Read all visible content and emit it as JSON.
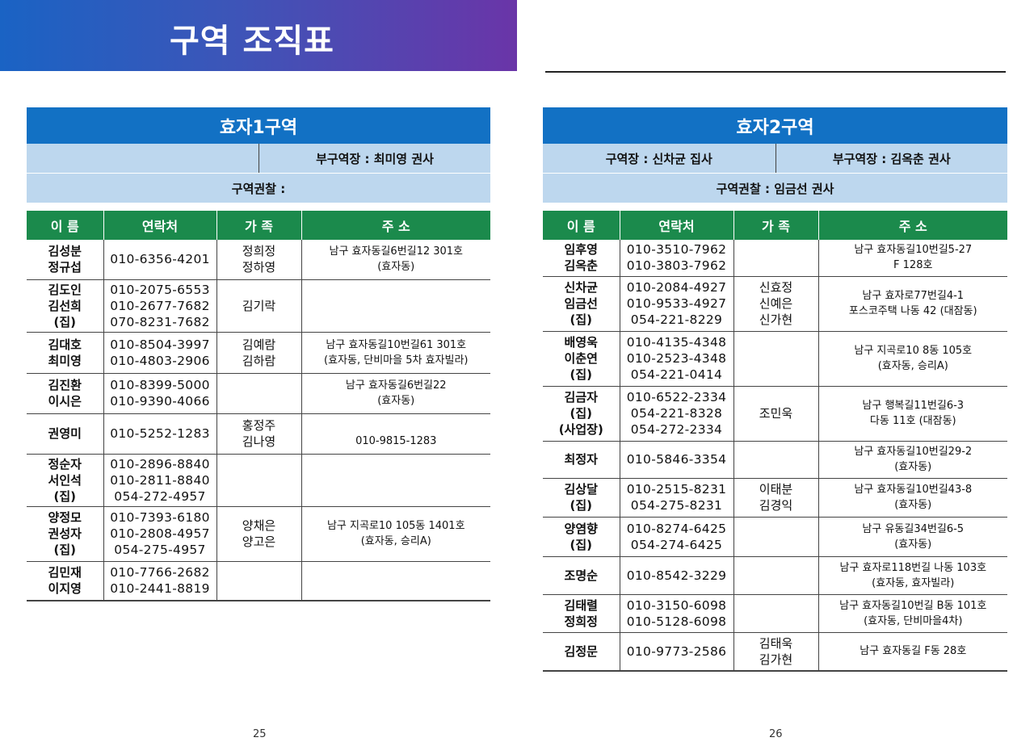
{
  "banner": {
    "title": "구역 조직표"
  },
  "columns": [
    "이 름",
    "연락처",
    "가 족",
    "주 소"
  ],
  "left": {
    "title": "효자1구역",
    "row1": [
      "",
      "부구역장 : 최미영 권사"
    ],
    "row2": "구역권찰 :",
    "rows": [
      [
        "김성분\n정규섭",
        "010-6356-4201",
        "정희정\n정하영",
        "남구 효자동길6번길12  301호\n(효자동)"
      ],
      [
        "김도인\n김선희\n(집)",
        "010-2075-6553\n010-2677-7682\n070-8231-7682",
        "김기락",
        ""
      ],
      [
        "김대호\n최미영",
        "010-8504-3997\n010-4803-2906",
        "김예람\n김하람",
        "남구 효자동길10번길61  301호\n(효자동, 단비마을 5차 효자빌라)"
      ],
      [
        "김진환\n이시은",
        "010-8399-5000\n010-9390-4066",
        "",
        "남구 효자동길6번길22\n(효자동)"
      ],
      [
        "권영미",
        "010-5252-1283",
        "홍정주\n김나영",
        "\n010-9815-1283"
      ],
      [
        "정순자\n서인석\n(집)",
        "010-2896-8840\n010-2811-8840\n054-272-4957",
        "",
        ""
      ],
      [
        "양정모\n권성자\n(집)",
        "010-7393-6180\n010-2808-4957\n054-275-4957",
        "양채은\n양고은",
        "남구 지곡로10 105동 1401호\n(효자동, 승리A)"
      ],
      [
        "김민재\n이지영",
        "010-7766-2682\n010-2441-8819",
        "",
        ""
      ]
    ],
    "page": "25"
  },
  "right": {
    "title": "효자2구역",
    "row1": [
      "구역장 : 신차균 집사",
      "부구역장 : 김옥춘 권사"
    ],
    "row2": "구역권찰 : 임금선 권사",
    "rows": [
      [
        "임후영\n김옥춘",
        "010-3510-7962\n010-3803-7962",
        "",
        "남구 효자동길10번길5-27\nF 128호"
      ],
      [
        "신차균\n임금선\n(집)",
        "010-2084-4927\n010-9533-4927\n054-221-8229",
        "신효정\n신예은\n신가현",
        "남구 효자로77번길4-1\n포스코주택  나동 42 (대잠동)"
      ],
      [
        "배영욱\n이춘연\n(집)",
        "010-4135-4348\n010-2523-4348\n054-221-0414",
        "",
        "남구 지곡로10 8동 105호\n(효자동, 승리A)"
      ],
      [
        "김금자\n(집)\n(사업장)",
        "010-6522-2334\n054-221-8328\n054-272-2334",
        "조민욱",
        "남구 행복길11번길6-3\n다동 11호 (대잠동)"
      ],
      [
        "최정자",
        "010-5846-3354",
        "",
        "남구 효자동길10번길29-2\n(효자동)"
      ],
      [
        "김상달\n(집)",
        "010-2515-8231\n054-275-8231",
        "이태분\n김경익",
        "남구 효자동길10번길43-8\n(효자동)"
      ],
      [
        "양염향\n(집)",
        "010-8274-6425\n054-274-6425",
        "",
        "남구 유동길34번길6-5\n(효자동)"
      ],
      [
        "조명순",
        "010-8542-3229",
        "",
        "남구 효자로118번길  나동 103호\n(효자동, 효자빌라)"
      ],
      [
        "김태렬\n정희정",
        "010-3150-6098\n010-5128-6098",
        "",
        "남구 효자동길10번길  B동 101호\n(효자동, 단비마을4차)"
      ],
      [
        "김정문",
        "010-9773-2586",
        "김태욱\n김가현",
        "남구 효자동길 F동 28호"
      ]
    ],
    "page": "26"
  }
}
